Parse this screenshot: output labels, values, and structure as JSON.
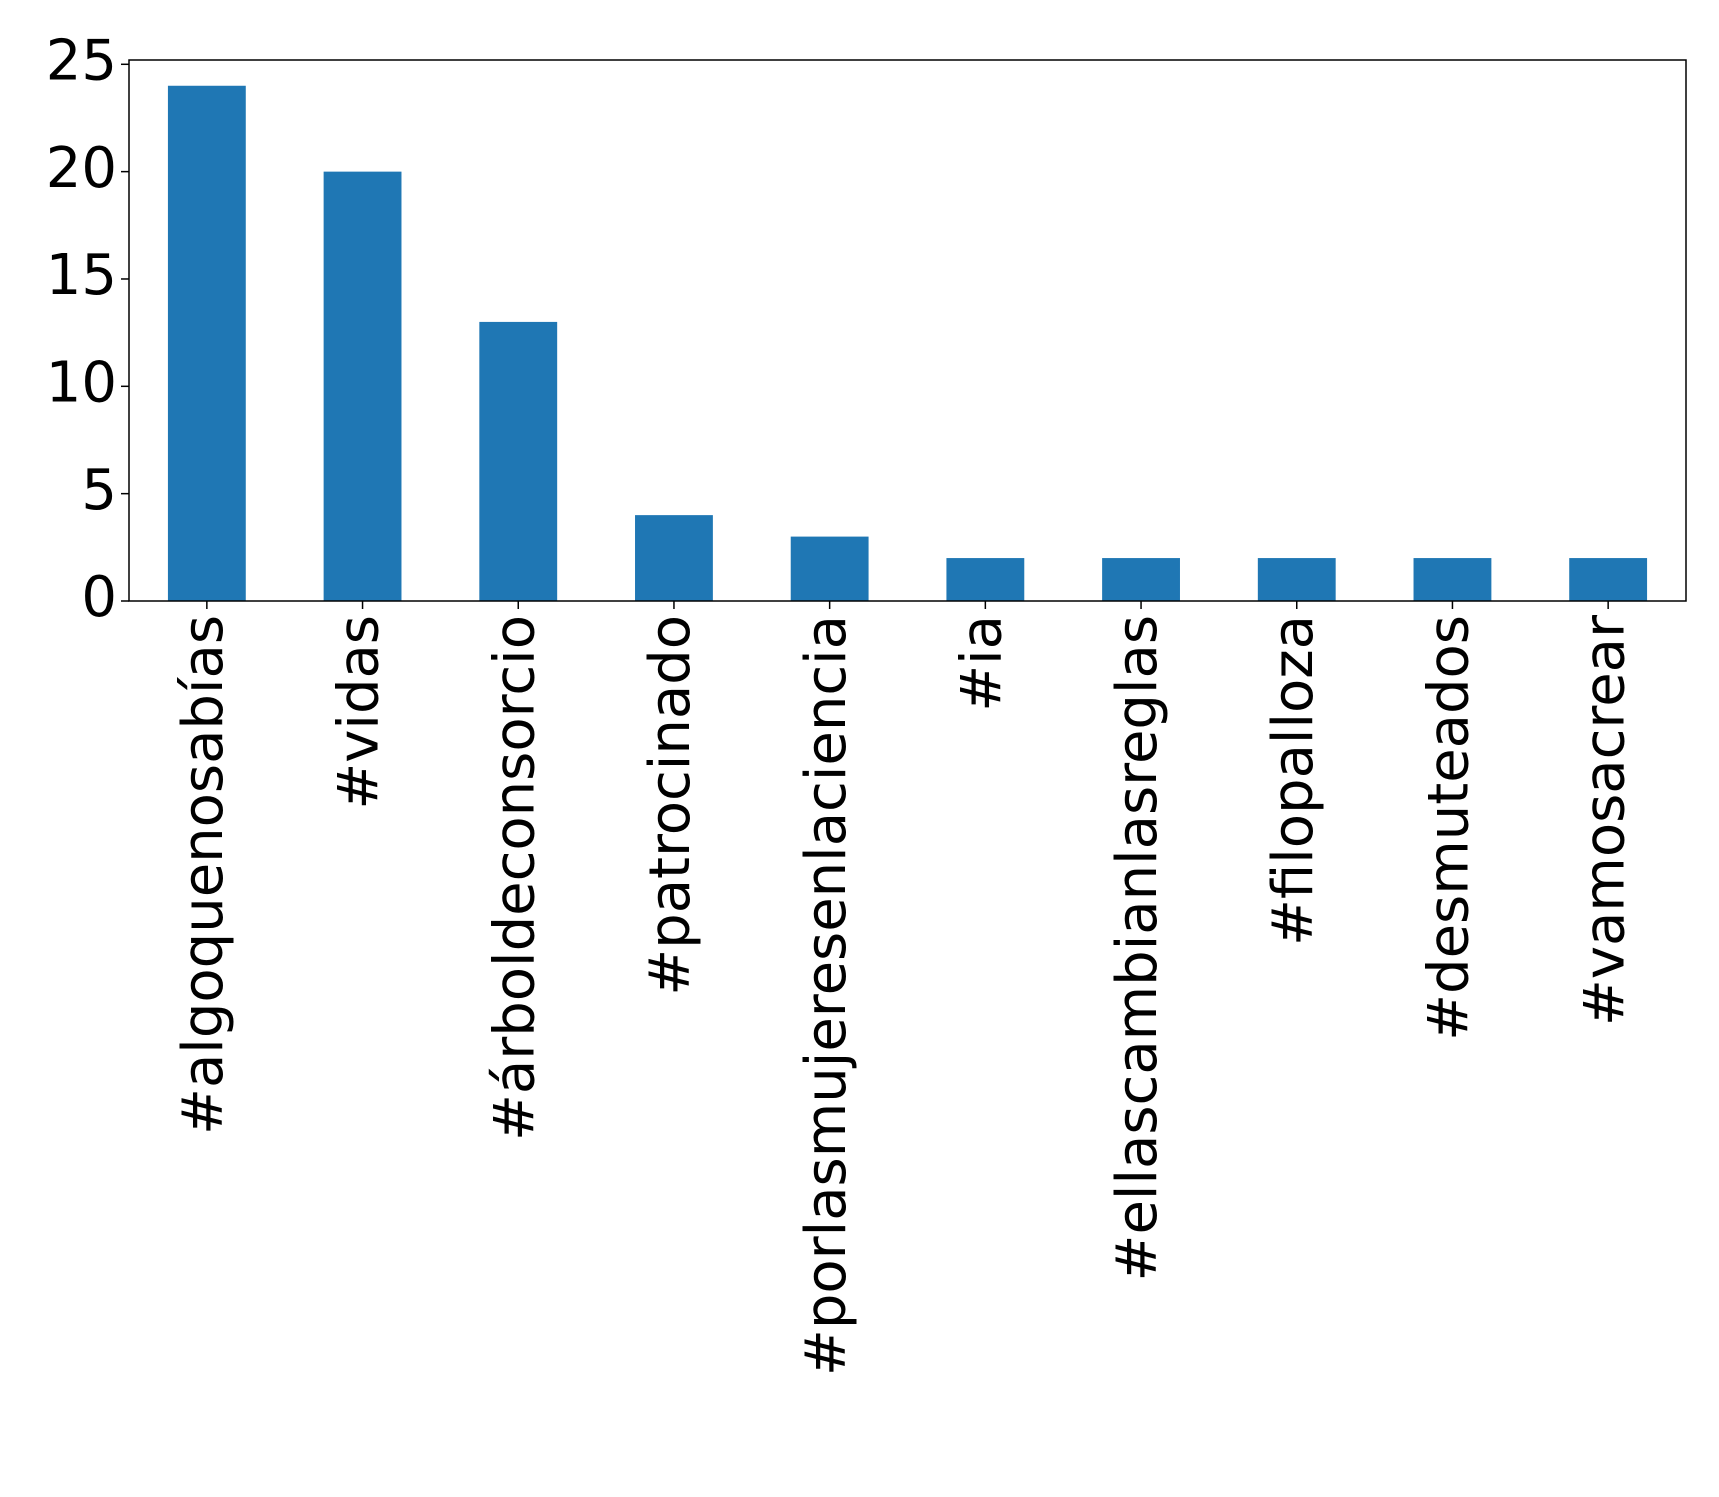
{
  "chart_data": {
    "type": "bar",
    "categories": [
      "#algoquenosabías",
      "#vidas",
      "#árboldeconsorcio",
      "#patrocinado",
      "#porlasmujeresenlaciencia",
      "#ia",
      "#ellascambianlasreglas",
      "#filopalloza",
      "#desmuteados",
      "#vamosacrear"
    ],
    "values": [
      24,
      20,
      13,
      4,
      3,
      2,
      2,
      2,
      2,
      2
    ],
    "ylim": [
      0,
      25.2
    ],
    "yticks": [
      0,
      5,
      10,
      15,
      20,
      25
    ],
    "title": "",
    "xlabel": "",
    "ylabel": "",
    "grid": false,
    "bar_color": "#1f77b4"
  }
}
